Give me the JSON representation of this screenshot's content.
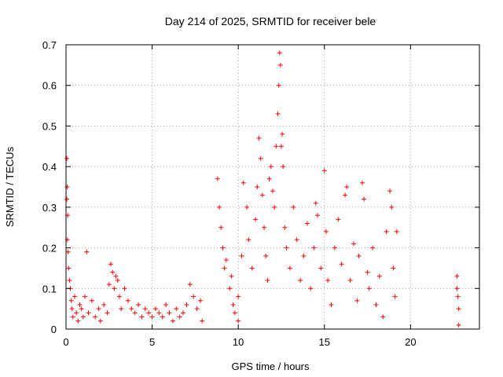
{
  "chart_data": {
    "type": "scatter",
    "title": "Day 214 of 2025, SRMTID for receiver bele",
    "xlabel": "GPS time / hours",
    "ylabel": "SRMTID / TECUs",
    "xlim": [
      0,
      24
    ],
    "ylim": [
      0,
      0.7
    ],
    "xticks": [
      0,
      5,
      10,
      15,
      20
    ],
    "yticks": [
      0,
      0.1,
      0.2,
      0.3,
      0.4,
      0.5,
      0.6,
      0.7
    ],
    "xtick_labels": [
      "0",
      "5",
      "10",
      "15",
      "20"
    ],
    "ytick_labels": [
      "0",
      "0.1",
      "0.2",
      "0.3",
      "0.4",
      "0.5",
      "0.6",
      "0.7"
    ],
    "grid": true,
    "marker": "+",
    "color": "#ff0000",
    "series": [
      {
        "name": "SRMTID",
        "points": [
          [
            0.05,
            0.42
          ],
          [
            0.07,
            0.35
          ],
          [
            0.05,
            0.32
          ],
          [
            0.1,
            0.28
          ],
          [
            0.08,
            0.22
          ],
          [
            0.12,
            0.19
          ],
          [
            0.15,
            0.15
          ],
          [
            0.2,
            0.12
          ],
          [
            0.25,
            0.1
          ],
          [
            0.3,
            0.07
          ],
          [
            0.35,
            0.05
          ],
          [
            0.4,
            0.03
          ],
          [
            0.5,
            0.08
          ],
          [
            0.6,
            0.04
          ],
          [
            0.7,
            0.02
          ],
          [
            0.8,
            0.06
          ],
          [
            0.9,
            0.05
          ],
          [
            1.0,
            0.03
          ],
          [
            1.2,
            0.19
          ],
          [
            1.1,
            0.08
          ],
          [
            1.3,
            0.04
          ],
          [
            1.5,
            0.07
          ],
          [
            1.7,
            0.03
          ],
          [
            1.9,
            0.05
          ],
          [
            2.0,
            0.02
          ],
          [
            2.2,
            0.06
          ],
          [
            2.4,
            0.04
          ],
          [
            2.5,
            0.11
          ],
          [
            2.6,
            0.16
          ],
          [
            2.7,
            0.14
          ],
          [
            2.8,
            0.1
          ],
          [
            2.9,
            0.13
          ],
          [
            3.0,
            0.12
          ],
          [
            3.1,
            0.08
          ],
          [
            3.2,
            0.05
          ],
          [
            3.4,
            0.1
          ],
          [
            3.6,
            0.07
          ],
          [
            3.8,
            0.05
          ],
          [
            4.0,
            0.04
          ],
          [
            4.2,
            0.06
          ],
          [
            4.4,
            0.03
          ],
          [
            4.6,
            0.05
          ],
          [
            4.8,
            0.04
          ],
          [
            5.0,
            0.03
          ],
          [
            5.2,
            0.05
          ],
          [
            5.4,
            0.04
          ],
          [
            5.6,
            0.03
          ],
          [
            5.8,
            0.06
          ],
          [
            6.0,
            0.04
          ],
          [
            6.2,
            0.02
          ],
          [
            6.4,
            0.05
          ],
          [
            6.6,
            0.03
          ],
          [
            6.8,
            0.04
          ],
          [
            7.0,
            0.06
          ],
          [
            7.2,
            0.11
          ],
          [
            7.4,
            0.08
          ],
          [
            7.6,
            0.05
          ],
          [
            7.8,
            0.07
          ],
          [
            7.9,
            0.02
          ],
          [
            8.8,
            0.37
          ],
          [
            8.9,
            0.3
          ],
          [
            9.0,
            0.25
          ],
          [
            9.1,
            0.2
          ],
          [
            9.2,
            0.15
          ],
          [
            9.3,
            0.17
          ],
          [
            9.5,
            0.1
          ],
          [
            9.6,
            0.13
          ],
          [
            9.7,
            0.06
          ],
          [
            9.8,
            0.04
          ],
          [
            10.0,
            0.02
          ],
          [
            10.0,
            0.08
          ],
          [
            10.2,
            0.18
          ],
          [
            10.3,
            0.36
          ],
          [
            10.5,
            0.3
          ],
          [
            10.6,
            0.22
          ],
          [
            10.8,
            0.15
          ],
          [
            11.0,
            0.27
          ],
          [
            11.1,
            0.35
          ],
          [
            11.2,
            0.47
          ],
          [
            11.3,
            0.42
          ],
          [
            11.4,
            0.33
          ],
          [
            11.5,
            0.25
          ],
          [
            11.6,
            0.18
          ],
          [
            11.7,
            0.12
          ],
          [
            11.8,
            0.37
          ],
          [
            11.9,
            0.4
          ],
          [
            12.0,
            0.34
          ],
          [
            12.1,
            0.3
          ],
          [
            12.2,
            0.45
          ],
          [
            12.3,
            0.53
          ],
          [
            12.35,
            0.6
          ],
          [
            12.4,
            0.68
          ],
          [
            12.45,
            0.65
          ],
          [
            12.5,
            0.45
          ],
          [
            12.55,
            0.48
          ],
          [
            12.6,
            0.4
          ],
          [
            12.7,
            0.25
          ],
          [
            12.8,
            0.2
          ],
          [
            13.0,
            0.15
          ],
          [
            13.2,
            0.3
          ],
          [
            13.4,
            0.22
          ],
          [
            13.6,
            0.12
          ],
          [
            13.8,
            0.18
          ],
          [
            14.0,
            0.26
          ],
          [
            14.2,
            0.1
          ],
          [
            14.4,
            0.2
          ],
          [
            14.5,
            0.31
          ],
          [
            14.6,
            0.28
          ],
          [
            14.8,
            0.15
          ],
          [
            15.0,
            0.39
          ],
          [
            15.1,
            0.24
          ],
          [
            15.2,
            0.12
          ],
          [
            15.4,
            0.06
          ],
          [
            15.6,
            0.2
          ],
          [
            15.8,
            0.27
          ],
          [
            16.0,
            0.16
          ],
          [
            16.2,
            0.33
          ],
          [
            16.3,
            0.35
          ],
          [
            16.5,
            0.12
          ],
          [
            16.7,
            0.21
          ],
          [
            16.9,
            0.07
          ],
          [
            17.0,
            0.18
          ],
          [
            17.2,
            0.36
          ],
          [
            17.3,
            0.32
          ],
          [
            17.5,
            0.14
          ],
          [
            17.6,
            0.1
          ],
          [
            17.8,
            0.2
          ],
          [
            18.0,
            0.06
          ],
          [
            18.2,
            0.13
          ],
          [
            18.4,
            0.03
          ],
          [
            18.6,
            0.24
          ],
          [
            18.8,
            0.34
          ],
          [
            18.9,
            0.3
          ],
          [
            19.0,
            0.15
          ],
          [
            19.1,
            0.08
          ],
          [
            19.2,
            0.24
          ],
          [
            22.7,
            0.13
          ],
          [
            22.7,
            0.1
          ],
          [
            22.75,
            0.08
          ],
          [
            22.8,
            0.05
          ],
          [
            22.8,
            0.01
          ]
        ]
      }
    ]
  }
}
